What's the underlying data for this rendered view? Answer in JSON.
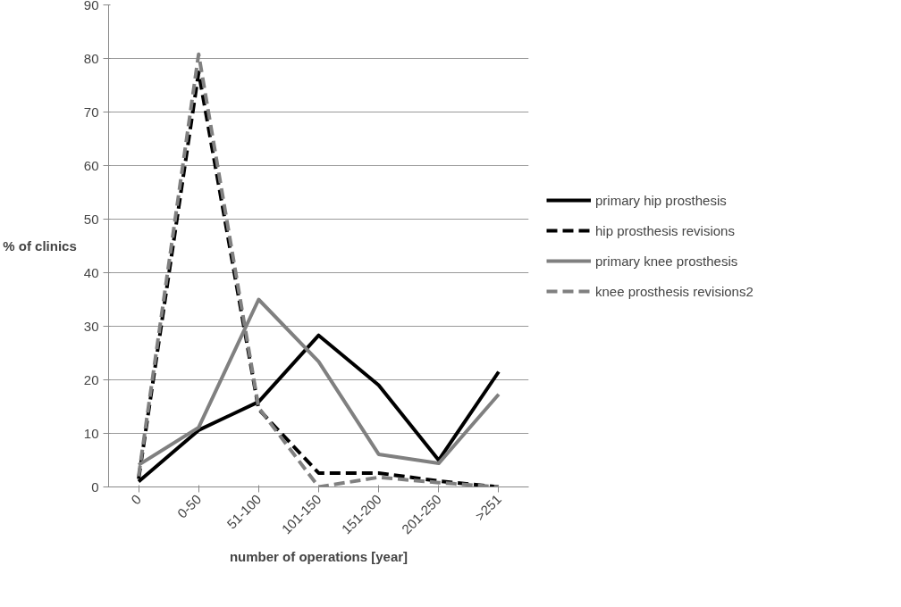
{
  "chart_data": {
    "type": "line",
    "xlabel": "number of operations [year]",
    "ylabel": "% of clinics",
    "categories": [
      "0",
      "0-50",
      "51-100",
      "101-150",
      "151-200",
      "201-250",
      ">251"
    ],
    "series": [
      {
        "name": "primary hip prosthesis",
        "color": "#000000",
        "line_style": "solid",
        "values": [
          1,
          10.6,
          15.9,
          28.3,
          19,
          5,
          21.5
        ]
      },
      {
        "name": "hip prosthesis revisions",
        "color": "#000000",
        "line_style": "dashed",
        "values": [
          1.5,
          77.4,
          14.5,
          2.6,
          2.6,
          1.1,
          0
        ]
      },
      {
        "name": "primary knee prosthesis",
        "color": "#808080",
        "line_style": "solid",
        "values": [
          4.1,
          11.1,
          35,
          23.4,
          6.1,
          4.4,
          17.3
        ]
      },
      {
        "name": "knee prosthesis revisions2",
        "color": "#808080",
        "line_style": "dashed",
        "values": [
          2,
          80.8,
          14.8,
          0,
          1.8,
          0.8,
          0
        ]
      }
    ],
    "ylim": [
      0,
      90
    ],
    "yticks": [
      0,
      10,
      20,
      30,
      40,
      50,
      60,
      70,
      80,
      90
    ],
    "grid": "y",
    "legend": "right"
  }
}
